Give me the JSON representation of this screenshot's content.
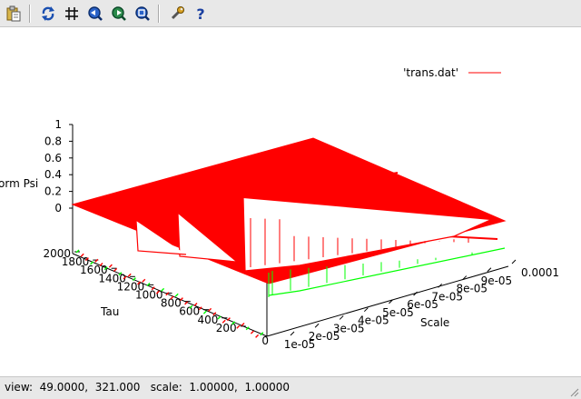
{
  "toolbar": {
    "buttons": [
      {
        "name": "copy-to-clipboard-icon",
        "label": "Copy to clipboard"
      },
      {
        "name": "replot-icon",
        "label": "Replot"
      },
      {
        "name": "grid-icon",
        "label": "Grid"
      },
      {
        "name": "zoom-previous-icon",
        "label": "Previous zoom"
      },
      {
        "name": "zoom-next-icon",
        "label": "Next zoom"
      },
      {
        "name": "unzoom-icon",
        "label": "Unzoom"
      },
      {
        "name": "settings-icon",
        "label": "Settings"
      },
      {
        "name": "help-icon",
        "label": "Help"
      }
    ]
  },
  "legend": {
    "label": "'trans.dat'",
    "color": "#ff0000"
  },
  "status": {
    "text": "view:  49.0000,  321.000   scale:  1.00000,  1.00000"
  },
  "colors": {
    "surface_line": "#ff0000",
    "base_line": "#00ff00",
    "surface_fill": "#ffffff",
    "toolbar_bg": "#e8e8e8",
    "icon_blue": "#1a4fb0"
  },
  "chart_data": {
    "type": "surface",
    "title": "",
    "zlabel": "orm Psi",
    "xlabel": "Scale",
    "ylabel": "Tau",
    "z_ticks": [
      "0",
      "0.2",
      "0.4",
      "0.6",
      "0.8",
      "1"
    ],
    "y_ticks": [
      "200",
      "400",
      "600",
      "800",
      "1000",
      "1200",
      "1400",
      "1600",
      "1800",
      "2000"
    ],
    "x_ticks": [
      "1e-05",
      "2e-05",
      "3e-05",
      "4e-05",
      "5e-05",
      "6e-05",
      "7e-05",
      "8e-05",
      "9e-05",
      "0.0001"
    ],
    "y_corner_tick": "0",
    "zlim": [
      0,
      1
    ],
    "xlim": [
      1e-05,
      0.0001
    ],
    "ylim": [
      0,
      2000
    ],
    "view": [
      49,
      321
    ],
    "legend_position": "top-right",
    "series": [
      {
        "name": "'trans.dat'",
        "color": "#ff0000"
      }
    ]
  }
}
